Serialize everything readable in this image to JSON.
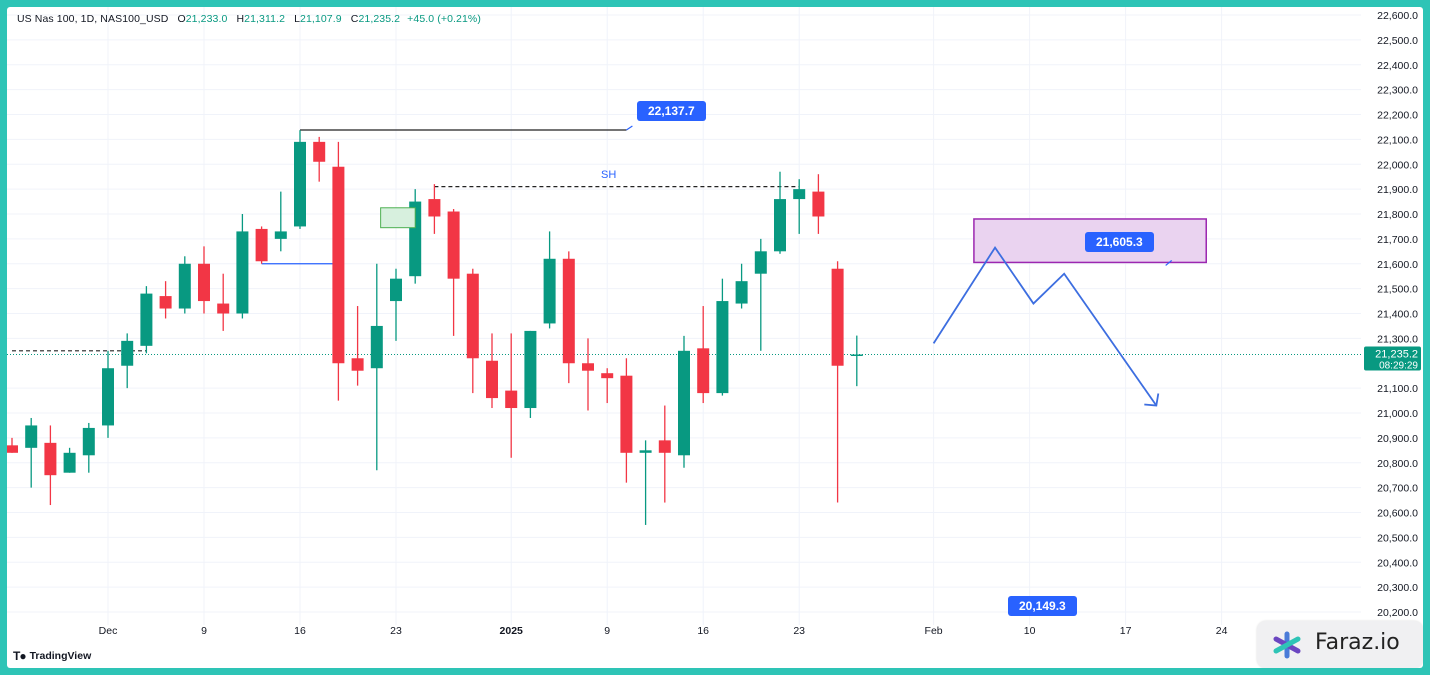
{
  "legend": {
    "symbol": "US Nas 100, 1D, NAS100_USD",
    "o_label": "O",
    "o_value": "21,233.0",
    "h_label": "H",
    "h_value": "21,311.2",
    "l_label": "L",
    "l_value": "21,107.9",
    "c_label": "C",
    "c_value": "21,235.2",
    "change": "+45.0 (+0.21%)"
  },
  "branding": {
    "tradingview": "TradingView",
    "faraz": "Faraz.io"
  },
  "colors": {
    "up": "#089981",
    "down": "#f23645",
    "annotation": "#2962ff",
    "zone_fill": "#ead3f0",
    "zone_border": "#9c27b0",
    "frame": "#2ec4b6"
  },
  "annotations": {
    "high_tag": "22,137.7",
    "zone_tag": "21,605.3",
    "low_tag": "20,149.3",
    "sh_label": "SH",
    "current_price": "21,235.2",
    "countdown": "08:29:29"
  },
  "chart_data": {
    "type": "candlestick",
    "x_ticks": [
      {
        "label": "Dec",
        "index": 5
      },
      {
        "label": "9",
        "index": 10
      },
      {
        "label": "16",
        "index": 15
      },
      {
        "label": "23",
        "index": 20
      },
      {
        "label": "2025",
        "index": 26
      },
      {
        "label": "9",
        "index": 31
      },
      {
        "label": "16",
        "index": 36
      },
      {
        "label": "23",
        "index": 41
      },
      {
        "label": "Feb",
        "index": 48
      },
      {
        "label": "10",
        "index": 53
      },
      {
        "label": "17",
        "index": 58
      },
      {
        "label": "24",
        "index": 63
      }
    ],
    "y_ticks": [
      "20,200.0",
      "20,300.0",
      "20,400.0",
      "20,500.0",
      "20,600.0",
      "20,700.0",
      "20,800.0",
      "20,900.0",
      "21,000.0",
      "21,100.0",
      "21,300.0",
      "21,400.0",
      "21,500.0",
      "21,600.0",
      "21,700.0",
      "21,800.0",
      "21,900.0",
      "22,000.0",
      "22,100.0",
      "22,200.0",
      "22,300.0",
      "22,400.0",
      "22,500.0",
      "22,600.0"
    ],
    "ylim": [
      20200,
      22600
    ],
    "candles": [
      {
        "i": 0,
        "o": 20870,
        "h": 20900,
        "l": 20840,
        "c": 20840
      },
      {
        "i": 1,
        "o": 20860,
        "h": 20980,
        "l": 20700,
        "c": 20950
      },
      {
        "i": 2,
        "o": 20880,
        "h": 20950,
        "l": 20630,
        "c": 20750
      },
      {
        "i": 3,
        "o": 20760,
        "h": 20860,
        "l": 20760,
        "c": 20840
      },
      {
        "i": 4,
        "o": 20830,
        "h": 20960,
        "l": 20760,
        "c": 20940
      },
      {
        "i": 5,
        "o": 20950,
        "h": 21250,
        "l": 20900,
        "c": 21180
      },
      {
        "i": 6,
        "o": 21190,
        "h": 21320,
        "l": 21100,
        "c": 21290
      },
      {
        "i": 7,
        "o": 21270,
        "h": 21510,
        "l": 21240,
        "c": 21480
      },
      {
        "i": 8,
        "o": 21470,
        "h": 21530,
        "l": 21380,
        "c": 21420
      },
      {
        "i": 9,
        "o": 21420,
        "h": 21630,
        "l": 21400,
        "c": 21600
      },
      {
        "i": 10,
        "o": 21600,
        "h": 21670,
        "l": 21400,
        "c": 21450
      },
      {
        "i": 11,
        "o": 21440,
        "h": 21560,
        "l": 21330,
        "c": 21400
      },
      {
        "i": 12,
        "o": 21400,
        "h": 21800,
        "l": 21380,
        "c": 21730
      },
      {
        "i": 13,
        "o": 21740,
        "h": 21750,
        "l": 21600,
        "c": 21610
      },
      {
        "i": 14,
        "o": 21700,
        "h": 21890,
        "l": 21650,
        "c": 21730
      },
      {
        "i": 15,
        "o": 21750,
        "h": 22137,
        "l": 21740,
        "c": 22090
      },
      {
        "i": 16,
        "o": 22090,
        "h": 22110,
        "l": 21930,
        "c": 22010
      },
      {
        "i": 17,
        "o": 21990,
        "h": 22090,
        "l": 21050,
        "c": 21200
      },
      {
        "i": 18,
        "o": 21220,
        "h": 21430,
        "l": 21110,
        "c": 21170
      },
      {
        "i": 19,
        "o": 21180,
        "h": 21600,
        "l": 20770,
        "c": 21350
      },
      {
        "i": 20,
        "o": 21450,
        "h": 21580,
        "l": 21290,
        "c": 21540
      },
      {
        "i": 21,
        "o": 21550,
        "h": 21900,
        "l": 21520,
        "c": 21850
      },
      {
        "i": 22,
        "o": 21860,
        "h": 21920,
        "l": 21720,
        "c": 21790
      },
      {
        "i": 23,
        "o": 21810,
        "h": 21820,
        "l": 21310,
        "c": 21540
      },
      {
        "i": 24,
        "o": 21560,
        "h": 21580,
        "l": 21080,
        "c": 21220
      },
      {
        "i": 25,
        "o": 21210,
        "h": 21320,
        "l": 21020,
        "c": 21060
      },
      {
        "i": 26,
        "o": 21090,
        "h": 21320,
        "l": 20820,
        "c": 21020
      },
      {
        "i": 27,
        "o": 21020,
        "h": 21330,
        "l": 20980,
        "c": 21330
      },
      {
        "i": 28,
        "o": 21360,
        "h": 21730,
        "l": 21340,
        "c": 21620
      },
      {
        "i": 29,
        "o": 21620,
        "h": 21650,
        "l": 21120,
        "c": 21200
      },
      {
        "i": 30,
        "o": 21200,
        "h": 21300,
        "l": 21010,
        "c": 21170
      },
      {
        "i": 31,
        "o": 21160,
        "h": 21180,
        "l": 21040,
        "c": 21140
      },
      {
        "i": 32,
        "o": 21150,
        "h": 21220,
        "l": 20720,
        "c": 20840
      },
      {
        "i": 33,
        "o": 20840,
        "h": 20890,
        "l": 20550,
        "c": 20850
      },
      {
        "i": 34,
        "o": 20890,
        "h": 21030,
        "l": 20640,
        "c": 20840
      },
      {
        "i": 35,
        "o": 20830,
        "h": 21310,
        "l": 20780,
        "c": 21250
      },
      {
        "i": 36,
        "o": 21260,
        "h": 21430,
        "l": 21040,
        "c": 21080
      },
      {
        "i": 37,
        "o": 21080,
        "h": 21540,
        "l": 21070,
        "c": 21450
      },
      {
        "i": 38,
        "o": 21440,
        "h": 21600,
        "l": 21420,
        "c": 21530
      },
      {
        "i": 39,
        "o": 21560,
        "h": 21700,
        "l": 21250,
        "c": 21650
      },
      {
        "i": 40,
        "o": 21650,
        "h": 21970,
        "l": 21640,
        "c": 21860
      },
      {
        "i": 41,
        "o": 21860,
        "h": 21940,
        "l": 21720,
        "c": 21900
      },
      {
        "i": 42,
        "o": 21890,
        "h": 21960,
        "l": 21720,
        "c": 21790
      },
      {
        "i": 43,
        "o": 21580,
        "h": 21610,
        "l": 20640,
        "c": 21190
      },
      {
        "i": 44,
        "o": 21233,
        "h": 21311.2,
        "l": 21107.9,
        "c": 21235.2
      }
    ],
    "horizontal_levels": [
      {
        "price": 22137.7,
        "from": 15,
        "to": 32,
        "style": "solid"
      },
      {
        "price": 21910,
        "from": 22,
        "to": 41,
        "style": "dashed"
      },
      {
        "price": 21600,
        "from": 13,
        "to": 17,
        "style": "solid"
      },
      {
        "price": 21250,
        "from": 0,
        "to": 7,
        "style": "dashed"
      }
    ],
    "current_price": 21235.2,
    "zone": {
      "from": 50.1,
      "to": 62.2,
      "top": 21780,
      "bottom": 21605.3
    },
    "small_box": {
      "from": 19.2,
      "to": 21.0,
      "top": 21825,
      "bottom": 21745
    },
    "projection_path": [
      {
        "i": 48,
        "p": 21280
      },
      {
        "i": 51.2,
        "p": 21665
      },
      {
        "i": 53.2,
        "p": 21440
      },
      {
        "i": 54.8,
        "p": 21560
      },
      {
        "i": 59.6,
        "p": 21030
      }
    ]
  }
}
